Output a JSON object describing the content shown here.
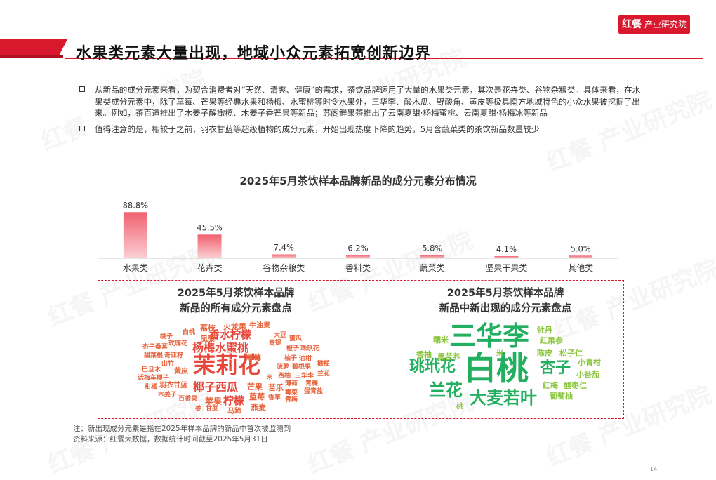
{
  "brand": {
    "logo": "红餐",
    "text": "产业研究院"
  },
  "title": "水果类元素大量出现，地域小众元素拓宽创新边界",
  "bullets": [
    "从新品的成分元素来看，为契合消费者对“天然、清爽、健康”的需求，茶饮品牌运用了大量的水果类元素，其次是花卉类、谷物杂粮类。具体来看，在水果类成分元素中，除了草莓、芒果等经典水果和杨梅、水蜜桃等时令水果外，三华李、酸木瓜、野酸角、黄皮等极具南方地域特色的小众水果被挖掘了出来。例如，茶百道推出了木姜子醒橄榄、木姜子香芒果等新品；苏阁鲜果茶推出了云南夏甜·杨梅蜜桃、云南夏甜·杨梅冰等新品",
    "值得注意的是，相较于之前，羽衣甘蓝等超级植物的成分元素，开始出现热度下降的趋势，5月含蔬菜类的茶饮新品数量较少"
  ],
  "chart_data": {
    "type": "bar",
    "title": "2025年5月茶饮样本品牌新品的成分元素分布情况",
    "categories": [
      "水果类",
      "花卉类",
      "谷物杂粮类",
      "香料类",
      "蔬菜类",
      "坚果干果类",
      "其他类"
    ],
    "values": [
      88.8,
      45.5,
      7.4,
      6.2,
      5.8,
      4.1,
      5.0
    ],
    "value_labels": [
      "88.8%",
      "45.5%",
      "7.4%",
      "6.2%",
      "5.8%",
      "4.1%",
      "5.0%"
    ],
    "unit": "%",
    "ylim": [
      0,
      100
    ],
    "grid": false,
    "bar_color": "#f0606e"
  },
  "clouds": {
    "left_title_1": "2025年5月茶饮样本品牌",
    "left_title_2": "新品的所有成分元素盘点",
    "right_title_1": "2025年5月茶饮样本品牌",
    "right_title_2": "新品中新出现的成分元素盘点",
    "left_words": [
      "茉莉花",
      "杨梅水蜜桃",
      "香水柠檬",
      "椰子西瓜",
      "柠檬",
      "火龙果",
      "荔枝",
      "牛油果",
      "凤梨",
      "草莓",
      "蓝莓",
      "苹果",
      "芒果",
      "苦乐",
      "白桃",
      "桃子",
      "玫瑰花",
      "大豆",
      "青提",
      "蜜瓜",
      "杏子桑葚",
      "甜菜根",
      "奇亚籽",
      "橙子",
      "珠玖花",
      "山竹",
      "巴旦木",
      "黄皮",
      "柚子",
      "菠萝",
      "油柑",
      "碧根果",
      "橄榄",
      "话梅车厘子",
      "羽衣甘蓝",
      "米",
      "西柚",
      "三华李",
      "兰花",
      "柑橘",
      "薄荷",
      "青稞",
      "燕麦",
      "木姜子",
      "百香果",
      "香草",
      "青梅",
      "姜",
      "甘蔗",
      "马蹄",
      "蛋青盐",
      "霉菜"
    ],
    "right_words": [
      "三华李",
      "白桃",
      "珧玳花",
      "兰花",
      "杏子",
      "大麦若叶",
      "糯米",
      "香柚",
      "黑苦荞",
      "米",
      "桃",
      "牡丹",
      "红果参",
      "陈皮",
      "松子仁",
      "小青柑",
      "小番茄",
      "红梅",
      "酸枣仁",
      "葡萄柚"
    ]
  },
  "notes": [
    "注：新出现成分元素是指在2025年样本品牌的新品中首次被监测到",
    "资料来源：红餐大数据，数据统计时间截至2025年5月31日"
  ],
  "page_number": "14",
  "watermark": "红餐 产业研究院",
  "colors": {
    "brand_red": "#d9182d",
    "bar": "#f0606e",
    "green": "#22b060",
    "lime": "#8cc63f",
    "orange": "#e8623a"
  }
}
